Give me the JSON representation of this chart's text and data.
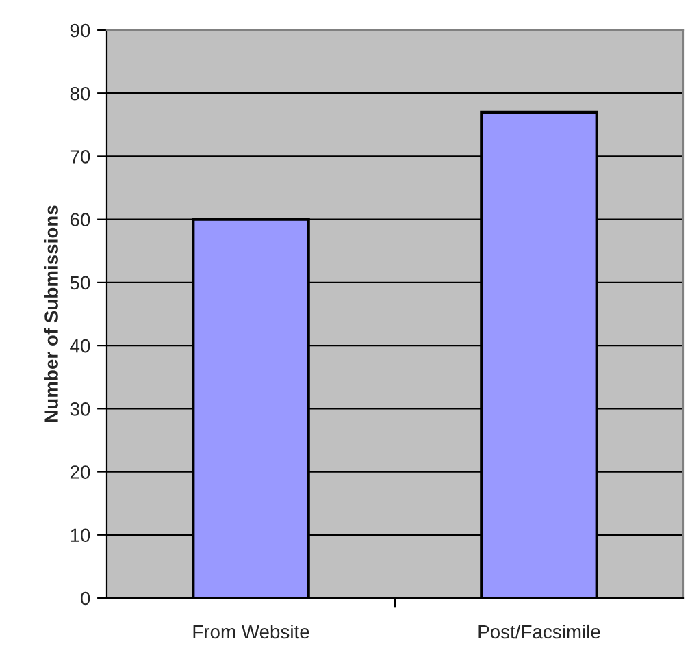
{
  "chart_data": {
    "type": "bar",
    "ylabel": "Number of Submissions",
    "categories": [
      "From Website",
      "Post/Facsimile"
    ],
    "values": [
      60,
      77
    ],
    "color": "#9999ff",
    "ylim": [
      0,
      90
    ],
    "yticks": [
      0,
      10,
      20,
      30,
      40,
      50,
      60,
      70,
      80,
      90
    ],
    "grid": "y"
  }
}
